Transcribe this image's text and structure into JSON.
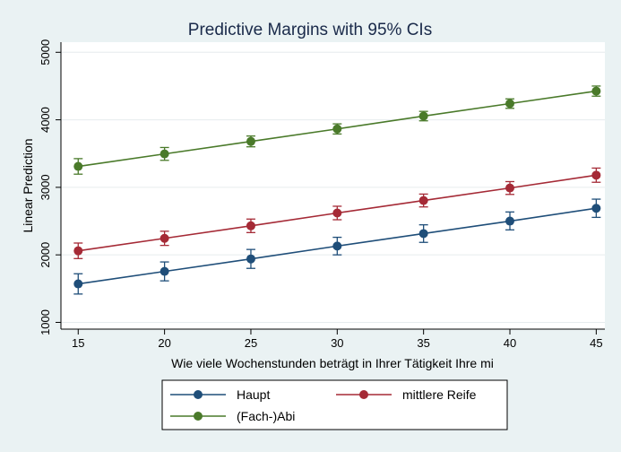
{
  "chart_data": {
    "type": "line",
    "title": "Predictive Margins with 95% CIs",
    "xlabel": "Wie viele Wochenstunden beträgt in Ihrer Tätigkeit Ihre mi",
    "ylabel": "Linear Prediction",
    "x": [
      15,
      20,
      25,
      30,
      35,
      40,
      45
    ],
    "xlim": [
      14,
      45.5
    ],
    "ylim": [
      900,
      5150
    ],
    "xticks": [
      "15",
      "20",
      "25",
      "30",
      "35",
      "40",
      "45"
    ],
    "yticks": [
      "1000",
      "2000",
      "3000",
      "4000",
      "5000"
    ],
    "grid": true,
    "legend_position": "bottom",
    "series": [
      {
        "name": "Haupt",
        "color": "#1f4e79",
        "values": [
          1570,
          1755,
          1940,
          2130,
          2315,
          2500,
          2690
        ],
        "ci_low": [
          1420,
          1615,
          1800,
          2000,
          2185,
          2370,
          2555
        ],
        "ci_high": [
          1720,
          1895,
          2080,
          2260,
          2445,
          2635,
          2825
        ]
      },
      {
        "name": "mittlere Reife",
        "color": "#a52a36",
        "values": [
          2060,
          2245,
          2430,
          2620,
          2805,
          2990,
          3180
        ],
        "ci_low": [
          1945,
          2140,
          2330,
          2520,
          2710,
          2895,
          3075
        ],
        "ci_high": [
          2175,
          2350,
          2530,
          2720,
          2900,
          3085,
          3285
        ]
      },
      {
        "name": "(Fach-)Abi",
        "color": "#4a7a2a",
        "values": [
          3310,
          3495,
          3680,
          3865,
          4055,
          4240,
          4425
        ],
        "ci_low": [
          3195,
          3400,
          3600,
          3790,
          3985,
          4170,
          4350
        ],
        "ci_high": [
          3425,
          3590,
          3760,
          3940,
          4125,
          4310,
          4500
        ]
      }
    ]
  }
}
